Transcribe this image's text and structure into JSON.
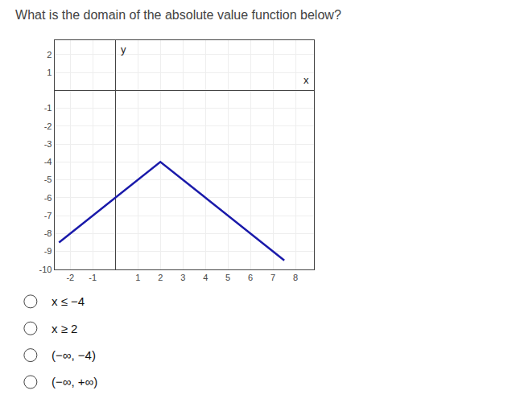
{
  "chart_data": {
    "type": "line",
    "title": "What is the domain of the absolute value function below?",
    "x": [
      -2.5,
      2,
      7.5
    ],
    "values": [
      -8.5,
      -4,
      -9.5
    ],
    "color": "#1a1aaa",
    "xlabel": "x",
    "ylabel": "y",
    "xlim": [
      -2.7,
      8.8
    ],
    "ylim": [
      -10.0,
      2.8
    ],
    "xticks": [
      -2,
      -1,
      1,
      2,
      3,
      4,
      5,
      6,
      7,
      8
    ],
    "yticks": [
      -10,
      -9,
      -8,
      -7,
      -6,
      -5,
      -4,
      -3,
      -2,
      -1,
      1,
      2
    ],
    "grid": true,
    "annotations": [
      "x ≤ −4",
      "x ≥ 2",
      "(−∞, −4)",
      "(−∞, +∞)"
    ]
  }
}
